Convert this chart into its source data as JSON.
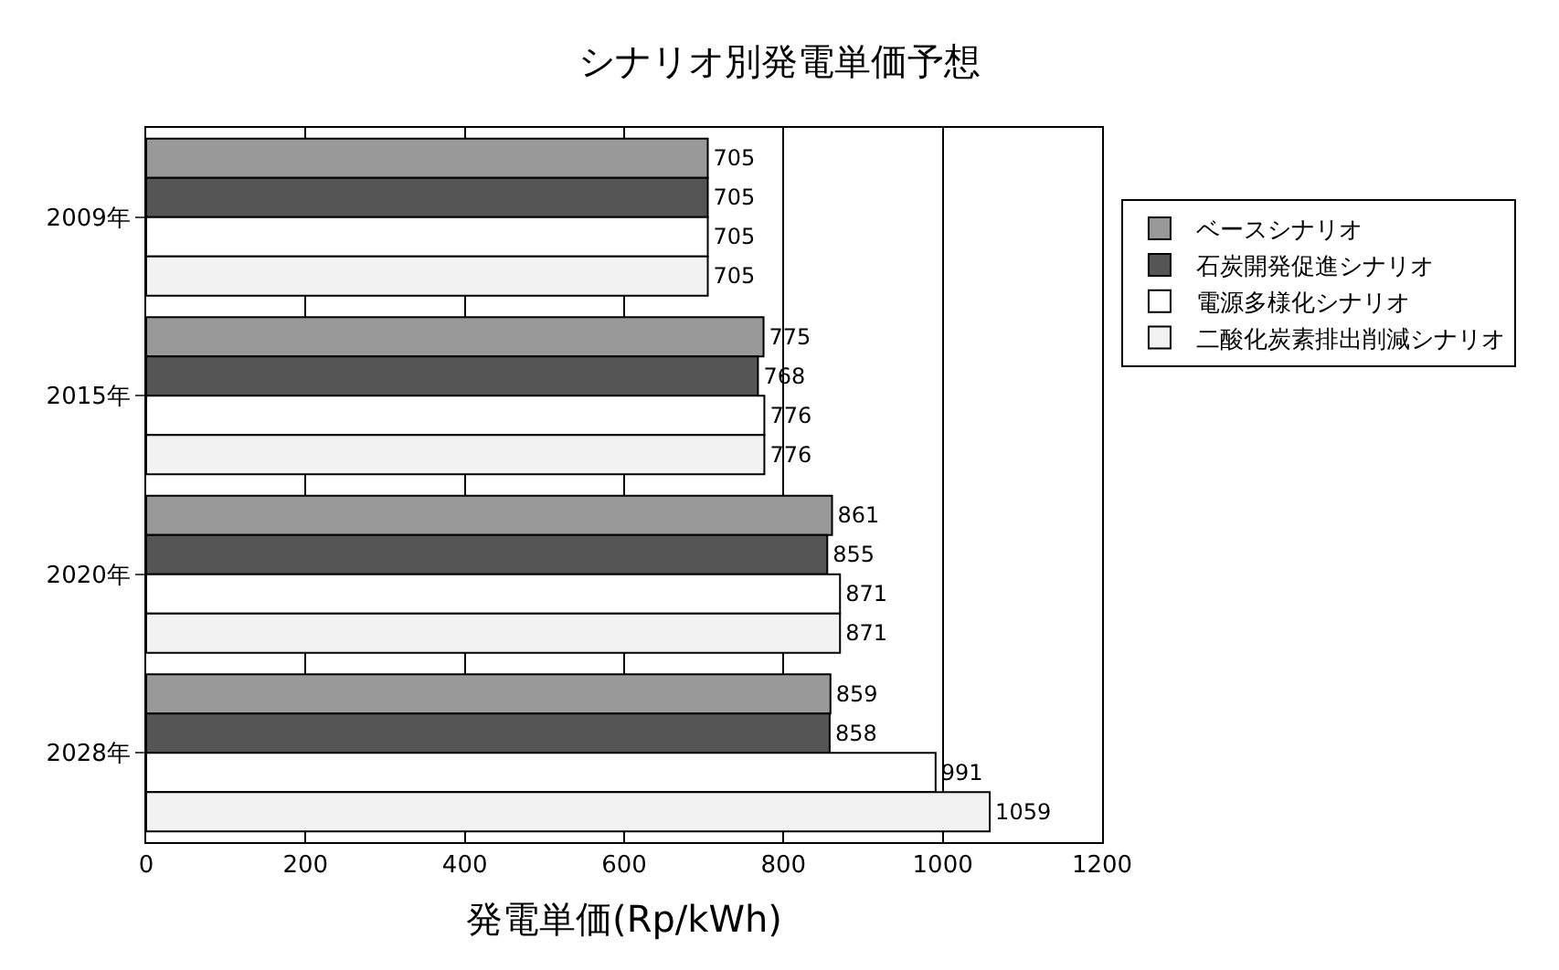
{
  "chart_data": {
    "type": "bar",
    "orientation": "horizontal",
    "title": "シナリオ別発電単価予想",
    "xlabel": "発電単価(Rp/kWh)",
    "categories": [
      "2009年",
      "2015年",
      "2020年",
      "2028年"
    ],
    "series": [
      {
        "name": "ベースシナリオ",
        "color": "#999999",
        "values": [
          705,
          775,
          861,
          859
        ]
      },
      {
        "name": "石炭開発促進シナリオ",
        "color": "#555555",
        "values": [
          705,
          768,
          855,
          858
        ]
      },
      {
        "name": "電源多様化シナリオ",
        "color": "#ffffff",
        "values": [
          705,
          776,
          871,
          991
        ]
      },
      {
        "name": "二酸化炭素排出削減シナリオ",
        "color": "#f2f2f2",
        "values": [
          705,
          776,
          871,
          1059
        ]
      }
    ],
    "xlim": [
      0,
      1200
    ],
    "xticks": [
      0,
      200,
      400,
      600,
      800,
      1000,
      1200
    ],
    "grid": "x",
    "legend": "right",
    "data_labels": true
  }
}
